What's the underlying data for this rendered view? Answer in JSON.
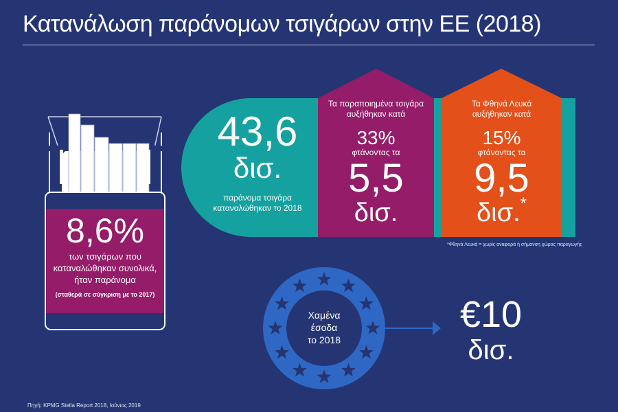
{
  "title": "Κατανάλωση παράνομων τσιγάρων στην ΕΕ (2018)",
  "colors": {
    "background": "#253574",
    "teal": "#15a1a0",
    "purple": "#951c69",
    "orange": "#e3501a",
    "eu_ring": "#2f68c4"
  },
  "pack": {
    "value": "8,6%",
    "text": [
      "των τσιγάρων που",
      "καταναλώθηκαν συνολικά,",
      "ήταν παράνομα"
    ],
    "note": "(σταθερά σε σύγκριση με το 2017)"
  },
  "total": {
    "value": "43,6",
    "unit": "δισ.",
    "text": [
      "παράνομα τσιγάρα",
      "καταναλώθηκαν το 2018"
    ]
  },
  "counterfeit": {
    "intro": [
      "Τα παραποιημένα τσιγάρα",
      "αυξήθηκαν κατά"
    ],
    "percent": "33%",
    "reaching": "φτάνοντας τα",
    "value": "5,5",
    "unit": "δισ."
  },
  "cheap_whites": {
    "intro": [
      "Τα Φθηνά Λευκά",
      "αυξήθηκαν κατά"
    ],
    "percent": "15%",
    "reaching": "φτάνοντας τα",
    "value": "9,5",
    "unit": "δισ.",
    "asterisk": "*"
  },
  "footnote": "*Φθηνά Λευκά = χωρίς αναφορά ή σήμανση χώρας παραγωγής",
  "lost_revenue": {
    "label": [
      "Χαμένα",
      "έσοδα",
      "το 2018"
    ],
    "value": "€10",
    "unit": "δισ."
  },
  "source": "Πηγή: KPMG Stella Report 2018, Ιούνιος 2019"
}
